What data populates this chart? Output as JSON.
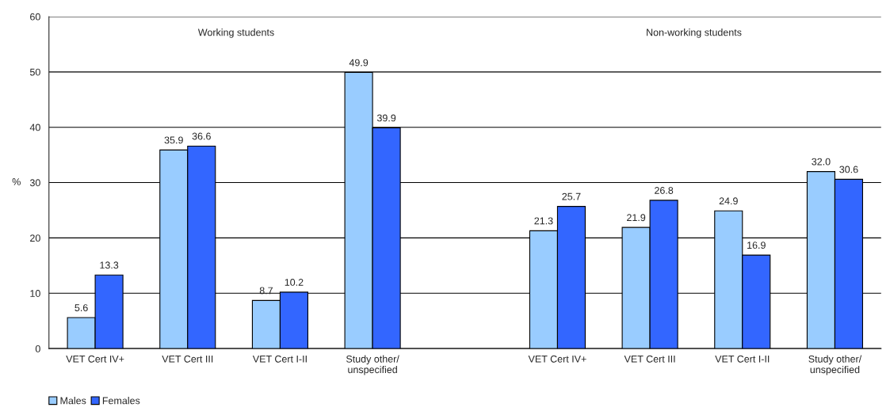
{
  "chart_data": {
    "type": "bar",
    "ylabel": "%",
    "categories": [
      "VET Cert IV+",
      "VET Cert III",
      "VET Cert I-II",
      "Study other/\nunspecified",
      null,
      "VET Cert IV+",
      "VET Cert III",
      "VET Cert I-II",
      "Study other/\nunspecified"
    ],
    "series": [
      {
        "name": "Males",
        "color": "#99ccff",
        "values": [
          5.6,
          35.9,
          8.7,
          49.9,
          null,
          21.3,
          21.9,
          24.9,
          32.0
        ],
        "value_labels": [
          "5.6",
          "35.9",
          "8.7",
          "49.9",
          null,
          "21.3",
          "21.9",
          "24.9",
          "32.0"
        ]
      },
      {
        "name": "Females",
        "color": "#3366ff",
        "values": [
          13.3,
          36.6,
          10.2,
          39.9,
          null,
          25.7,
          26.8,
          16.9,
          30.6
        ],
        "value_labels": [
          "13.3",
          "36.6",
          "10.2",
          "39.9",
          null,
          "25.7",
          "26.8",
          "16.9",
          "30.6"
        ]
      }
    ],
    "ylim": [
      0,
      60
    ],
    "yticks": [
      0,
      10,
      20,
      30,
      40,
      50,
      60
    ],
    "grid": "y",
    "legend": "bottom left",
    "annotations": [
      "Working students",
      "Non-working students"
    ]
  }
}
